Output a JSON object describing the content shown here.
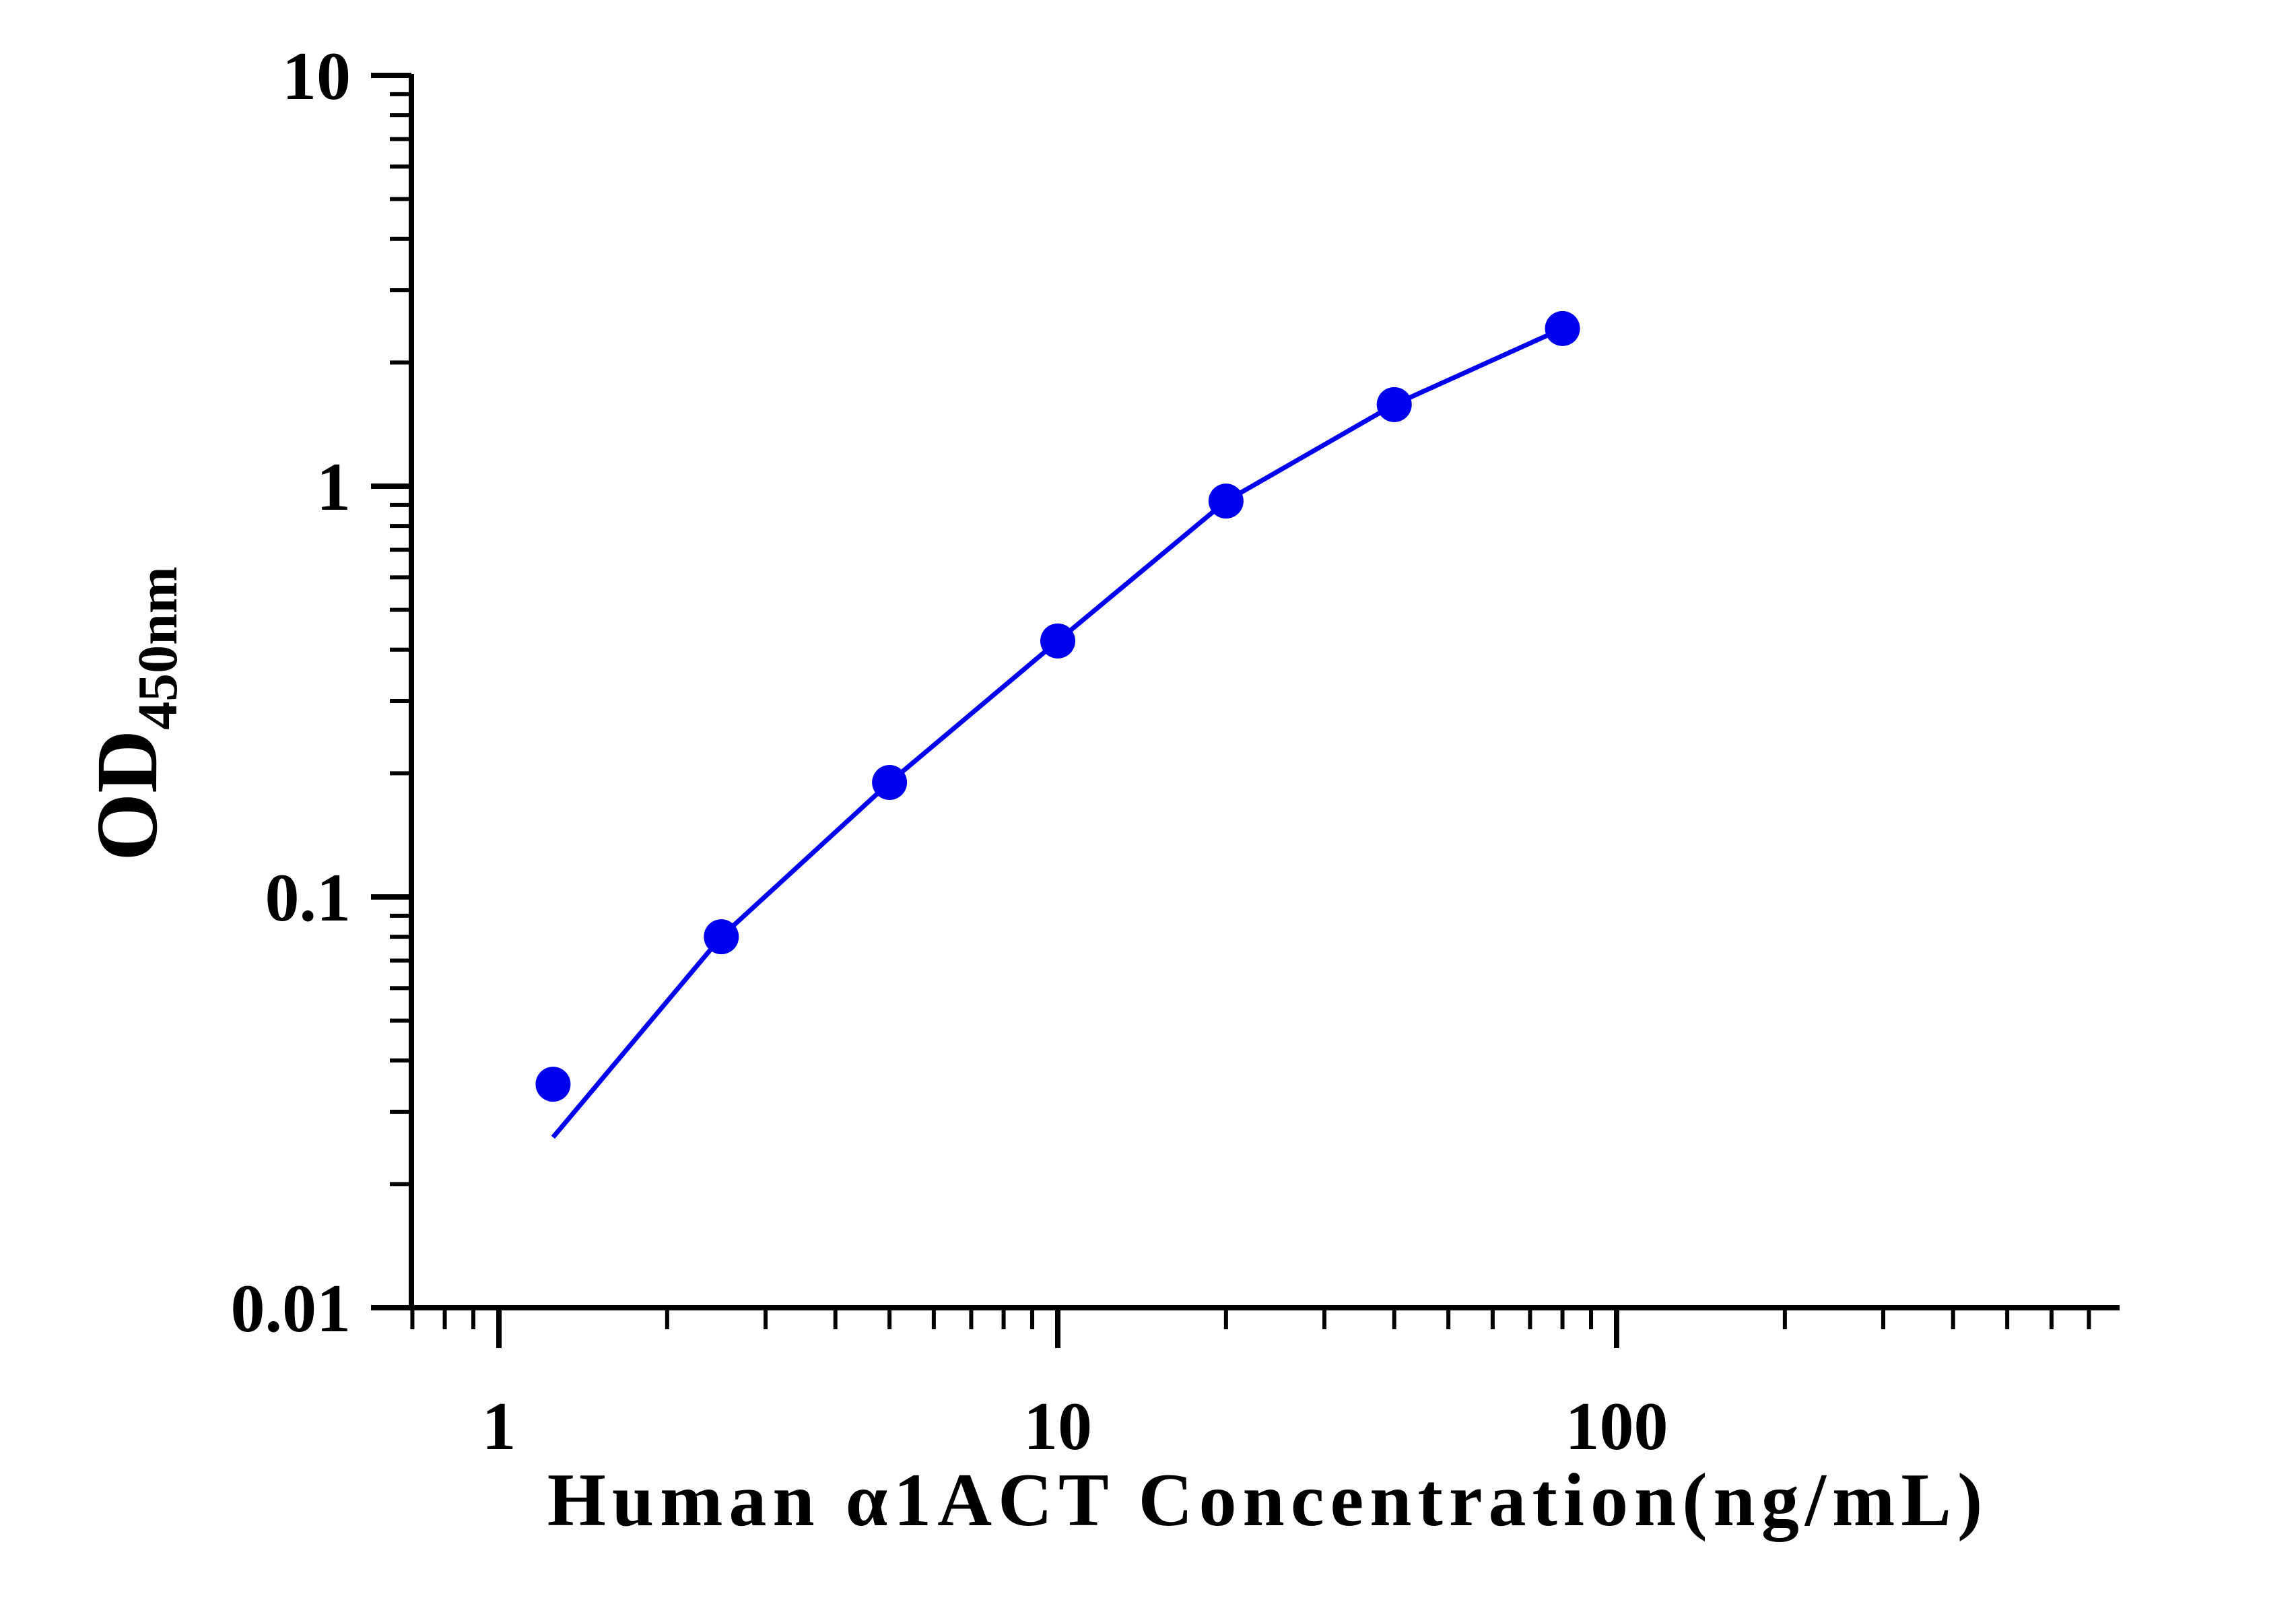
{
  "chart_data": {
    "type": "scatter",
    "x_scale": "log",
    "y_scale": "log",
    "xlim": [
      0.7,
      900
    ],
    "ylim": [
      0.01,
      10
    ],
    "xlabel": "Human α1ACT Concentration(ng/mL)",
    "ylabel_main": "OD",
    "ylabel_sub": "450nm",
    "x_ticks": [
      {
        "value": 1,
        "label": "1"
      },
      {
        "value": 10,
        "label": "10"
      },
      {
        "value": 100,
        "label": "100"
      }
    ],
    "y_ticks": [
      {
        "value": 0.01,
        "label": "0.01"
      },
      {
        "value": 0.1,
        "label": "0.1"
      },
      {
        "value": 1,
        "label": "1"
      },
      {
        "value": 10,
        "label": "10"
      }
    ],
    "series": [
      {
        "x": [
          1.25,
          2.5,
          5,
          10,
          20,
          40,
          80
        ],
        "y": [
          0.035,
          0.08,
          0.19,
          0.42,
          0.92,
          1.58,
          2.42
        ],
        "color": "#0000ee",
        "marker": "circle"
      }
    ],
    "fit_curve": {
      "x": [
        1.25,
        2.5,
        5,
        10,
        20,
        40,
        80
      ],
      "y": [
        0.026,
        0.08,
        0.19,
        0.42,
        0.92,
        1.58,
        2.42
      ],
      "color": "#0000ee"
    },
    "grid": false,
    "legend": "none"
  }
}
